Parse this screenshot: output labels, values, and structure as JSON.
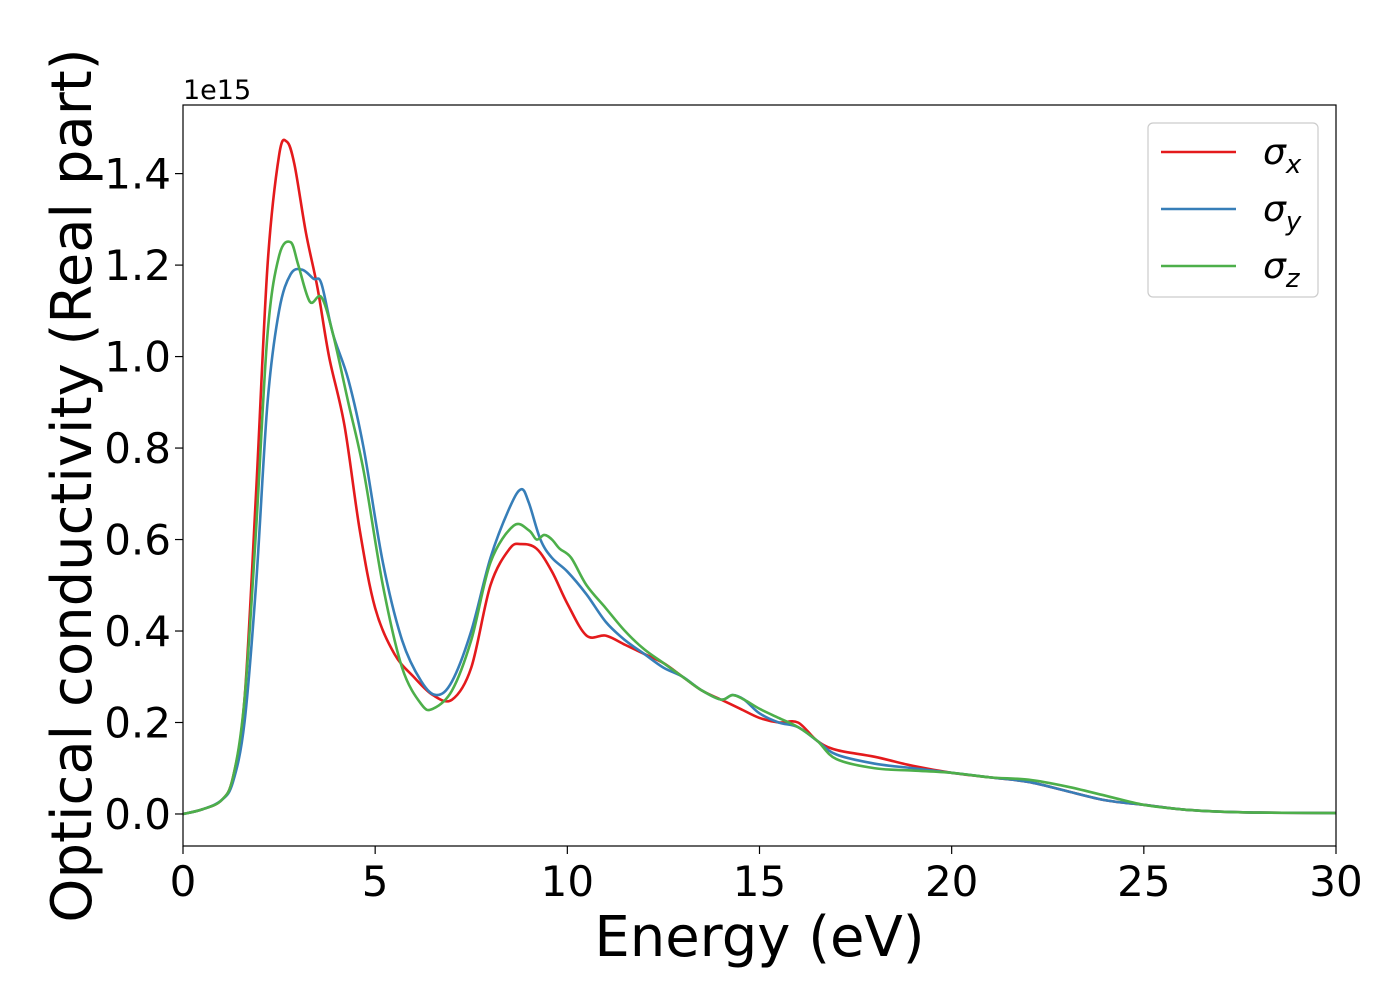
{
  "chart_data": {
    "type": "line",
    "xlabel": "Energy (eV)",
    "ylabel": "Optical conductivity (Real part)",
    "y_offset_label": "1e15",
    "xlim": [
      0,
      30
    ],
    "ylim": [
      -0.07,
      1.55
    ],
    "y_scale_note": "values in units of 1e15",
    "xticks": [
      0,
      5,
      10,
      15,
      20,
      25,
      30
    ],
    "xtick_labels": [
      "0",
      "5",
      "10",
      "15",
      "20",
      "25",
      "30"
    ],
    "yticks": [
      0.0,
      0.2,
      0.4,
      0.6,
      0.8,
      1.0,
      1.2,
      1.4
    ],
    "ytick_labels": [
      "0.0",
      "0.2",
      "0.4",
      "0.6",
      "0.8",
      "1.0",
      "1.2",
      "1.4"
    ],
    "grid": false,
    "legend_position": "top-right",
    "series": [
      {
        "name": "σx",
        "legend_main": "σ",
        "legend_sub": "x",
        "color": "#e41a1c",
        "x": [
          0,
          0.5,
          1.0,
          1.3,
          1.6,
          1.9,
          2.2,
          2.5,
          2.7,
          2.9,
          3.2,
          3.5,
          3.8,
          4.2,
          4.6,
          5.0,
          5.5,
          6.0,
          6.5,
          7.0,
          7.5,
          8.0,
          8.5,
          8.8,
          9.2,
          9.6,
          10.0,
          10.5,
          11.0,
          11.5,
          12.0,
          12.5,
          13.0,
          13.5,
          14.0,
          14.5,
          15.0,
          15.5,
          16.0,
          16.5,
          17.0,
          18.0,
          19.0,
          20.0,
          21.0,
          22.0,
          23.0,
          24.0,
          25.0,
          26.0,
          27.0,
          28.0,
          30.0
        ],
        "y": [
          0,
          0.01,
          0.03,
          0.08,
          0.25,
          0.7,
          1.2,
          1.44,
          1.47,
          1.42,
          1.27,
          1.15,
          1.0,
          0.85,
          0.62,
          0.45,
          0.35,
          0.3,
          0.26,
          0.25,
          0.32,
          0.5,
          0.58,
          0.59,
          0.58,
          0.53,
          0.46,
          0.39,
          0.39,
          0.37,
          0.35,
          0.33,
          0.3,
          0.27,
          0.25,
          0.23,
          0.21,
          0.2,
          0.2,
          0.16,
          0.14,
          0.125,
          0.105,
          0.09,
          0.08,
          0.07,
          0.05,
          0.03,
          0.02,
          0.01,
          0.005,
          0.003,
          0.002
        ]
      },
      {
        "name": "σy",
        "legend_main": "σ",
        "legend_sub": "y",
        "color": "#377eb8",
        "x": [
          0,
          0.5,
          1.0,
          1.3,
          1.6,
          1.9,
          2.2,
          2.5,
          2.8,
          3.1,
          3.4,
          3.6,
          3.9,
          4.3,
          4.7,
          5.2,
          5.7,
          6.2,
          6.6,
          7.0,
          7.5,
          8.0,
          8.5,
          8.8,
          9.0,
          9.3,
          9.6,
          10.0,
          10.5,
          11.0,
          11.5,
          12.0,
          12.5,
          13.0,
          13.5,
          14.0,
          14.3,
          14.6,
          15.0,
          15.5,
          16.0,
          16.5,
          17.0,
          18.0,
          19.0,
          20.0,
          21.0,
          22.0,
          23.0,
          24.0,
          25.0,
          26.0,
          27.0,
          28.0,
          30.0
        ],
        "y": [
          0,
          0.01,
          0.03,
          0.07,
          0.2,
          0.5,
          0.9,
          1.1,
          1.18,
          1.19,
          1.17,
          1.16,
          1.05,
          0.95,
          0.8,
          0.55,
          0.38,
          0.29,
          0.26,
          0.29,
          0.4,
          0.56,
          0.67,
          0.71,
          0.68,
          0.6,
          0.56,
          0.53,
          0.48,
          0.42,
          0.38,
          0.35,
          0.32,
          0.3,
          0.27,
          0.25,
          0.26,
          0.25,
          0.22,
          0.2,
          0.19,
          0.16,
          0.13,
          0.11,
          0.1,
          0.09,
          0.08,
          0.07,
          0.05,
          0.03,
          0.02,
          0.01,
          0.005,
          0.003,
          0.002
        ]
      },
      {
        "name": "σz",
        "legend_main": "σ",
        "legend_sub": "z",
        "color": "#4daf4a",
        "x": [
          0,
          0.5,
          1.0,
          1.3,
          1.6,
          1.9,
          2.2,
          2.5,
          2.8,
          3.0,
          3.3,
          3.6,
          3.9,
          4.3,
          4.7,
          5.2,
          5.7,
          6.2,
          6.5,
          7.0,
          7.5,
          8.0,
          8.6,
          9.0,
          9.2,
          9.4,
          9.6,
          9.8,
          10.1,
          10.5,
          11.0,
          11.5,
          12.0,
          12.5,
          13.0,
          13.5,
          14.0,
          14.3,
          14.6,
          15.0,
          15.5,
          16.0,
          16.5,
          17.0,
          18.0,
          19.0,
          20.0,
          21.0,
          22.0,
          23.0,
          24.0,
          25.0,
          26.0,
          27.0,
          28.0,
          30.0
        ],
        "y": [
          0,
          0.01,
          0.03,
          0.08,
          0.25,
          0.62,
          1.05,
          1.22,
          1.25,
          1.2,
          1.12,
          1.13,
          1.05,
          0.9,
          0.75,
          0.5,
          0.32,
          0.24,
          0.23,
          0.27,
          0.38,
          0.55,
          0.63,
          0.62,
          0.6,
          0.61,
          0.6,
          0.58,
          0.56,
          0.5,
          0.45,
          0.4,
          0.36,
          0.33,
          0.3,
          0.27,
          0.25,
          0.26,
          0.25,
          0.23,
          0.21,
          0.19,
          0.16,
          0.12,
          0.1,
          0.095,
          0.09,
          0.08,
          0.075,
          0.06,
          0.04,
          0.02,
          0.01,
          0.005,
          0.003,
          0.002
        ]
      }
    ]
  }
}
